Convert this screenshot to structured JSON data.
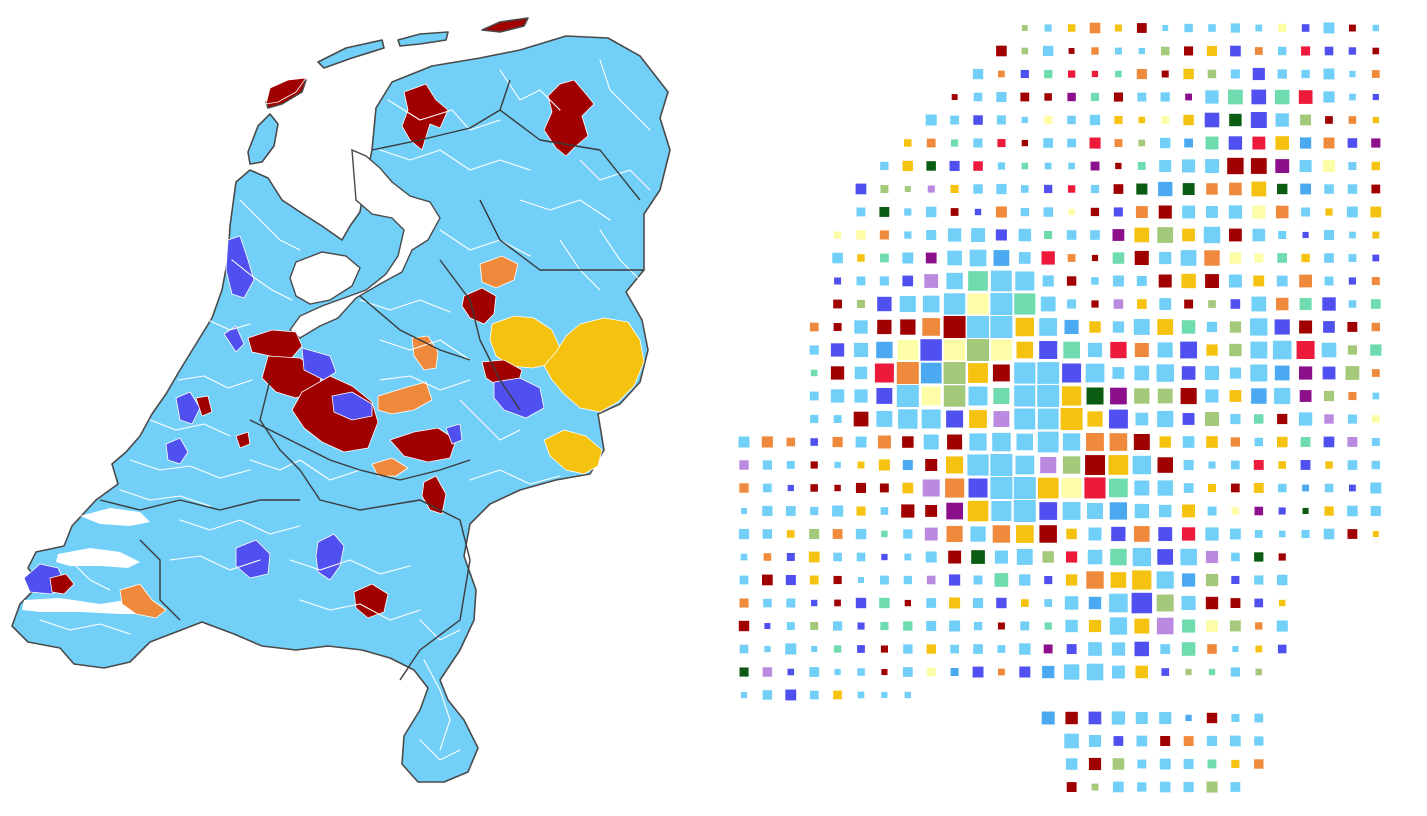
{
  "colors": {
    "background": "#ffffff",
    "land": "#72cff8",
    "municipality_borders": "#ffffff",
    "province_borders": "#3a3a3a",
    "party_palette": {
      "light_blue": "#72cff8",
      "dark_red": "#a00000",
      "blue_violet": "#5050f0",
      "orange": "#ef8a3c",
      "yellow": "#f5c20f",
      "mint": "#6fdcb0",
      "sky": "#4aa9f0",
      "olive_green": "#a5c97a",
      "dark_green": "#0b5c12",
      "purple": "#8c108c",
      "lavender": "#ba8ae0",
      "crimson": "#ee1a3c",
      "pale_yellow": "#fdfda8"
    }
  },
  "map": {
    "icon": "netherlands-municipality-map",
    "fill_categories": [
      "light_blue",
      "dark_red",
      "blue_violet",
      "orange",
      "yellow"
    ]
  },
  "grid": {
    "icon": "square-tile-grid-map",
    "fill_categories": [
      "light_blue",
      "dark_red",
      "blue_violet",
      "orange",
      "yellow",
      "mint",
      "sky",
      "olive_green",
      "dark_green",
      "purple",
      "lavender",
      "crimson",
      "pale_yellow"
    ]
  }
}
